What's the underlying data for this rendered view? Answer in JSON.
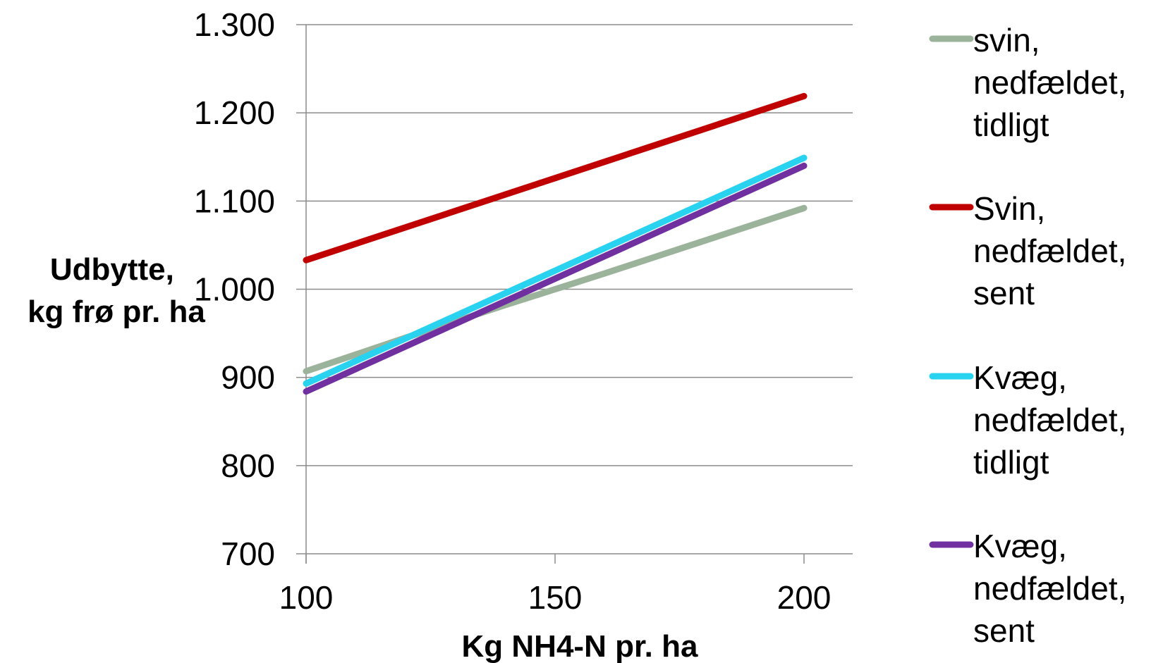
{
  "chart_data": {
    "type": "line",
    "xlabel": "Kg NH4-N pr. ha",
    "ylabel_lines": [
      "Udbytte,",
      "kg frø pr. ha"
    ],
    "xlim": [
      100,
      210
    ],
    "ylim": [
      700,
      1300
    ],
    "x_ticks": [
      100,
      150,
      200
    ],
    "x_tick_labels": [
      "100",
      "150",
      "200"
    ],
    "y_ticks": [
      700,
      800,
      900,
      1000,
      1100,
      1200,
      1300
    ],
    "y_tick_labels": [
      "700",
      "800",
      "900",
      "1.000",
      "1.100",
      "1.200",
      "1.300"
    ],
    "grid": "horizontal",
    "legend_position": "right",
    "series": [
      {
        "name": "svin, nedfældet, tidligt",
        "legend_lines": [
          "svin,",
          "nedfældet,",
          "tidligt"
        ],
        "color": "#9bb39b",
        "x": [
          100,
          120,
          140,
          160,
          180,
          200
        ],
        "y": [
          907,
          945,
          982,
          1018,
          1055,
          1092
        ]
      },
      {
        "name": "Svin, nedfældet, sent",
        "legend_lines": [
          "Svin,",
          "nedfældet,",
          "sent"
        ],
        "color": "#c00000",
        "x": [
          100,
          150,
          200
        ],
        "y": [
          1033,
          1126,
          1219
        ]
      },
      {
        "name": "Kvæg, nedfældet, tidligt",
        "legend_lines": [
          "Kvæg,",
          "nedfældet,",
          "tidligt"
        ],
        "color": "#29d3f0",
        "x": [
          100,
          150,
          200
        ],
        "y": [
          893,
          1021,
          1149
        ]
      },
      {
        "name": "Kvæg, nedfældet, sent",
        "legend_lines": [
          "Kvæg,",
          "nedfældet,",
          "sent"
        ],
        "color": "#7030a0",
        "x": [
          100,
          150,
          200
        ],
        "y": [
          884,
          1012,
          1140
        ]
      }
    ]
  }
}
